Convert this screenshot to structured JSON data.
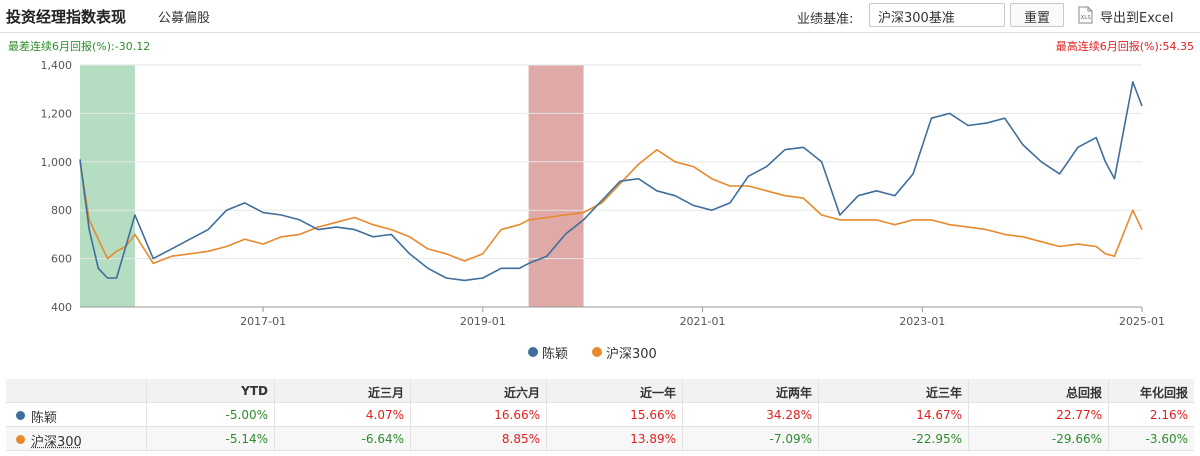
{
  "header": {
    "title": "投资经理指数表现",
    "subtab": "公募偏股",
    "benchmark_label": "业绩基准:",
    "benchmark_value": "沪深300基准",
    "reset_label": "重置",
    "export_label": "导出到Excel",
    "export_icon": "xls-file-icon"
  },
  "drawdown": {
    "worst_label": "最差连续6月回报(%):",
    "worst_value": "-30.12",
    "best_label": "最高连续6月回报(%):",
    "best_value": "54.35"
  },
  "colors": {
    "chenying": "#3f6e9c",
    "hs300": "#e8892b",
    "worst_band": "#a7d7b6",
    "best_band": "#d89a98",
    "positive": "#e02020",
    "negative": "#2e8b2e"
  },
  "chart_data": {
    "type": "line",
    "title": "",
    "xlabel": "",
    "ylabel": "",
    "ylim": [
      400,
      1400
    ],
    "yticks": [
      400,
      600,
      800,
      1000,
      1200,
      1400
    ],
    "xtick_labels": [
      "2017-01",
      "2019-01",
      "2021-01",
      "2023-01",
      "2025-01"
    ],
    "xlim": [
      "2015-05",
      "2025-01"
    ],
    "grid": "horizontal",
    "legend_position": "bottom",
    "highlight_bands": [
      {
        "kind": "worst",
        "start": "2015-05",
        "end": "2015-11"
      },
      {
        "kind": "best",
        "start": "2019-06",
        "end": "2019-12"
      }
    ],
    "x": [
      "2015-05",
      "2015-06",
      "2015-07",
      "2015-08",
      "2015-09",
      "2015-10",
      "2015-11",
      "2016-01",
      "2016-03",
      "2016-05",
      "2016-07",
      "2016-09",
      "2016-11",
      "2017-01",
      "2017-03",
      "2017-05",
      "2017-07",
      "2017-09",
      "2017-11",
      "2018-01",
      "2018-03",
      "2018-05",
      "2018-07",
      "2018-09",
      "2018-11",
      "2019-01",
      "2019-03",
      "2019-05",
      "2019-06",
      "2019-08",
      "2019-10",
      "2019-12",
      "2020-02",
      "2020-04",
      "2020-06",
      "2020-08",
      "2020-10",
      "2020-12",
      "2021-02",
      "2021-04",
      "2021-06",
      "2021-08",
      "2021-10",
      "2021-12",
      "2022-02",
      "2022-04",
      "2022-06",
      "2022-08",
      "2022-10",
      "2022-12",
      "2023-02",
      "2023-04",
      "2023-06",
      "2023-08",
      "2023-10",
      "2023-12",
      "2024-02",
      "2024-04",
      "2024-06",
      "2024-08",
      "2024-09",
      "2024-10",
      "2024-12",
      "2025-01"
    ],
    "series": [
      {
        "name": "陈颖",
        "values": [
          1010,
          720,
          560,
          520,
          520,
          650,
          780,
          600,
          640,
          680,
          720,
          800,
          830,
          790,
          780,
          760,
          720,
          730,
          720,
          690,
          700,
          620,
          560,
          520,
          510,
          520,
          560,
          560,
          580,
          610,
          700,
          760,
          840,
          920,
          930,
          880,
          860,
          820,
          800,
          830,
          940,
          980,
          1050,
          1060,
          1000,
          780,
          860,
          880,
          860,
          950,
          1180,
          1200,
          1150,
          1160,
          1180,
          1070,
          1000,
          950,
          1060,
          1100,
          1000,
          930,
          1330,
          1230
        ]
      },
      {
        "name": "沪深300",
        "values": [
          1000,
          760,
          680,
          600,
          630,
          650,
          700,
          580,
          610,
          620,
          630,
          650,
          680,
          660,
          690,
          700,
          730,
          750,
          770,
          740,
          720,
          690,
          640,
          620,
          590,
          620,
          720,
          740,
          760,
          770,
          780,
          790,
          830,
          910,
          990,
          1050,
          1000,
          980,
          930,
          900,
          900,
          880,
          860,
          850,
          780,
          760,
          760,
          760,
          740,
          760,
          760,
          740,
          730,
          720,
          700,
          690,
          670,
          650,
          660,
          650,
          620,
          610,
          800,
          720
        ]
      }
    ]
  },
  "table": {
    "headers": [
      "YTD",
      "近三月",
      "近六月",
      "近一年",
      "近两年",
      "近三年",
      "总回报",
      "年化回报"
    ],
    "rows": [
      {
        "name": "陈颖",
        "cells": [
          "-5.00%",
          "4.07%",
          "16.66%",
          "15.66%",
          "34.28%",
          "14.67%",
          "22.77%",
          "2.16%"
        ]
      },
      {
        "name": "沪深300",
        "cells": [
          "-5.14%",
          "-6.64%",
          "8.85%",
          "13.89%",
          "-7.09%",
          "-22.95%",
          "-29.66%",
          "-3.60%"
        ]
      }
    ]
  }
}
